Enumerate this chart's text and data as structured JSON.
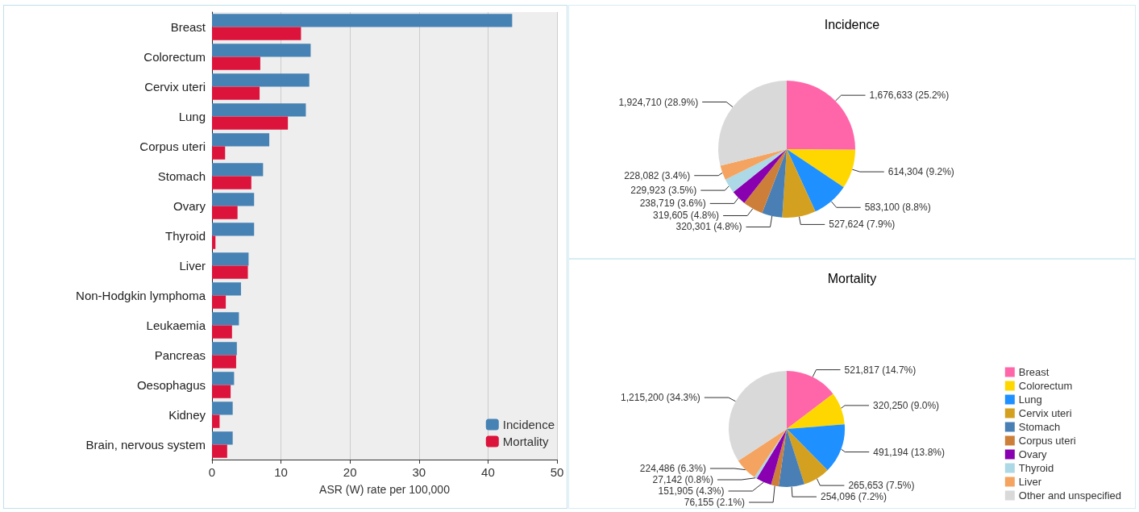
{
  "chart_data": [
    {
      "type": "bar",
      "orientation": "horizontal",
      "xlabel": "ASR (W) rate per 100,000",
      "categories": [
        "Breast",
        "Colorectum",
        "Cervix uteri",
        "Lung",
        "Corpus uteri",
        "Stomach",
        "Ovary",
        "Thyroid",
        "Liver",
        "Non-Hodgkin lymphoma",
        "Leukaemia",
        "Pancreas",
        "Oesophagus",
        "Kidney",
        "Brain, nervous system"
      ],
      "series": [
        {
          "name": "Incidence",
          "color": "#4682b4",
          "values": [
            43.5,
            14.3,
            14.1,
            13.6,
            8.3,
            7.4,
            6.1,
            6.1,
            5.3,
            4.2,
            3.9,
            3.6,
            3.2,
            3.0,
            3.0
          ]
        },
        {
          "name": "Mortality",
          "color": "#dc143c",
          "values": [
            12.9,
            7.0,
            6.9,
            11.0,
            1.9,
            5.7,
            3.7,
            0.5,
            5.2,
            2.0,
            2.9,
            3.5,
            2.7,
            1.1,
            2.2
          ]
        }
      ],
      "xlim": [
        0,
        50
      ],
      "xticks": [
        0,
        10,
        20,
        30,
        40,
        50
      ],
      "grid": "x",
      "legend": "bottom right"
    },
    {
      "type": "pie",
      "title": "Incidence",
      "categories": [
        null,
        null,
        null,
        null,
        null,
        null,
        null,
        null,
        null,
        null
      ],
      "values": [
        1676633,
        614304,
        583100,
        527624,
        320301,
        319605,
        238719,
        229923,
        228082,
        1924710
      ],
      "value_labels": [
        "1,676,633 (25.2%)",
        "614,304 (9.2%)",
        "583,100 (8.8%)",
        "527,624 (7.9%)",
        "320,301 (4.8%)",
        "319,605 (4.8%)",
        "238,719 (3.6%)",
        "229,923 (3.5%)",
        "228,082 (3.4%)",
        "1,924,710 (28.9%)"
      ],
      "colors": [
        "#ff66aa",
        "#ffd700",
        "#1e90ff",
        "#d4a020",
        "#4a7fb5",
        "#cd7f3a",
        "#8800b0",
        "#add8e6",
        "#f4a460",
        "#d9d9d9"
      ],
      "legend": false
    },
    {
      "type": "pie",
      "title": "Mortality",
      "categories": [
        "Breast",
        "Colorectum",
        "Lung",
        "Cervix uteri",
        "Stomach",
        "Corpus uteri",
        "Ovary",
        "Thyroid",
        "Liver",
        "Other and unspecified"
      ],
      "values": [
        521817,
        320250,
        491194,
        265653,
        254096,
        76155,
        151905,
        27142,
        224486,
        1215200
      ],
      "value_labels": [
        "521,817 (14.7%)",
        "320,250 (9.0%)",
        "491,194 (13.8%)",
        "265,653 (7.5%)",
        "254,096 (7.2%)",
        "76,155 (2.1%)",
        "151,905 (4.3%)",
        "27,142 (0.8%)",
        "224,486 (6.3%)",
        "1,215,200 (34.3%)"
      ],
      "colors": [
        "#ff66aa",
        "#ffd700",
        "#1e90ff",
        "#d4a020",
        "#4a7fb5",
        "#cd7f3a",
        "#8800b0",
        "#add8e6",
        "#f4a460",
        "#d9d9d9"
      ],
      "legend": "right"
    }
  ]
}
